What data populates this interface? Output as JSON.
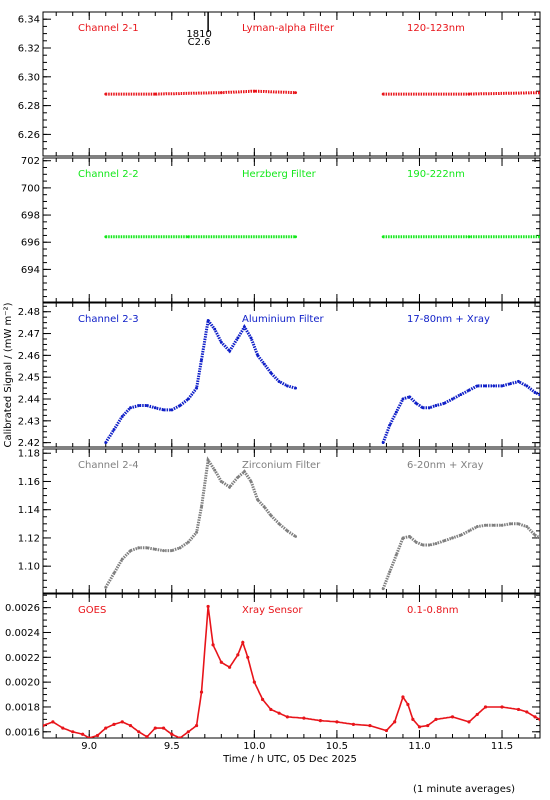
{
  "chart_data": [
    {
      "type": "scatter",
      "labels": [
        "Channel 2-1",
        "Lyman-alpha Filter",
        "120-123nm"
      ],
      "color": "#e8141a",
      "ylim": [
        6.245,
        6.345
      ],
      "yticks": [
        6.26,
        6.28,
        6.3,
        6.32,
        6.34
      ],
      "ytick_decimals": 2,
      "segments": [
        {
          "x": [
            9.1,
            9.4,
            9.8,
            10.0,
            10.25
          ],
          "y": [
            6.288,
            6.288,
            6.289,
            6.29,
            6.289
          ]
        },
        {
          "x": [
            10.78,
            11.3,
            11.73
          ],
          "y": [
            6.288,
            6.288,
            6.289
          ]
        }
      ]
    },
    {
      "type": "scatter",
      "labels": [
        "Channel 2-2",
        "Herzberg Filter",
        "190-222nm"
      ],
      "color": "#13e81a",
      "ylim": [
        691.6,
        702.2
      ],
      "yticks": [
        694,
        696,
        698,
        700,
        702
      ],
      "ytick_decimals": 0,
      "segments": [
        {
          "x": [
            9.1,
            9.6,
            10.25
          ],
          "y": [
            696.4,
            696.4,
            696.4
          ]
        },
        {
          "x": [
            10.78,
            11.3,
            11.73
          ],
          "y": [
            696.4,
            696.4,
            696.4
          ]
        }
      ]
    },
    {
      "type": "scatter",
      "labels": [
        "Channel 2-3",
        "Aluminium Filter",
        "17-80nm + Xray"
      ],
      "color": "#1020c8",
      "ylim": [
        2.418,
        2.484
      ],
      "yticks": [
        2.42,
        2.43,
        2.44,
        2.45,
        2.46,
        2.47,
        2.48
      ],
      "ytick_decimals": 2,
      "segments": [
        {
          "x": [
            9.1,
            9.15,
            9.2,
            9.25,
            9.3,
            9.35,
            9.4,
            9.45,
            9.5,
            9.55,
            9.6,
            9.65,
            9.68,
            9.72,
            9.76,
            9.8,
            9.85,
            9.9,
            9.94,
            9.98,
            10.02,
            10.06,
            10.1,
            10.15,
            10.2,
            10.25
          ],
          "y": [
            2.42,
            2.426,
            2.432,
            2.436,
            2.437,
            2.437,
            2.436,
            2.435,
            2.435,
            2.437,
            2.44,
            2.445,
            2.458,
            2.476,
            2.472,
            2.466,
            2.462,
            2.468,
            2.473,
            2.468,
            2.46,
            2.456,
            2.452,
            2.448,
            2.446,
            2.445
          ]
        },
        {
          "x": [
            10.78,
            10.82,
            10.86,
            10.9,
            10.94,
            10.98,
            11.02,
            11.06,
            11.1,
            11.15,
            11.2,
            11.25,
            11.3,
            11.35,
            11.4,
            11.45,
            11.5,
            11.55,
            11.6,
            11.65,
            11.7,
            11.73
          ],
          "y": [
            2.42,
            2.428,
            2.434,
            2.44,
            2.441,
            2.438,
            2.436,
            2.436,
            2.437,
            2.438,
            2.44,
            2.442,
            2.444,
            2.446,
            2.446,
            2.446,
            2.446,
            2.447,
            2.448,
            2.446,
            2.443,
            2.442
          ]
        }
      ]
    },
    {
      "type": "scatter",
      "labels": [
        "Channel 2-4",
        "Zirconium Filter",
        "6-20nm + Xray"
      ],
      "color": "#808080",
      "ylim": [
        1.081,
        1.183
      ],
      "yticks": [
        1.1,
        1.12,
        1.14,
        1.16,
        1.18
      ],
      "ytick_decimals": 2,
      "segments": [
        {
          "x": [
            9.1,
            9.15,
            9.2,
            9.25,
            9.3,
            9.35,
            9.4,
            9.45,
            9.5,
            9.55,
            9.6,
            9.65,
            9.68,
            9.72,
            9.76,
            9.8,
            9.85,
            9.9,
            9.94,
            9.98,
            10.02,
            10.06,
            10.1,
            10.15,
            10.2,
            10.25
          ],
          "y": [
            1.085,
            1.095,
            1.105,
            1.111,
            1.113,
            1.113,
            1.112,
            1.111,
            1.111,
            1.113,
            1.117,
            1.124,
            1.142,
            1.175,
            1.168,
            1.16,
            1.156,
            1.163,
            1.167,
            1.16,
            1.147,
            1.142,
            1.136,
            1.13,
            1.125,
            1.121
          ]
        },
        {
          "x": [
            10.78,
            10.82,
            10.86,
            10.9,
            10.94,
            10.98,
            11.02,
            11.06,
            11.1,
            11.15,
            11.2,
            11.25,
            11.3,
            11.35,
            11.4,
            11.45,
            11.5,
            11.55,
            11.6,
            11.65,
            11.7,
            11.73
          ],
          "y": [
            1.084,
            1.096,
            1.108,
            1.12,
            1.121,
            1.117,
            1.115,
            1.115,
            1.116,
            1.118,
            1.12,
            1.122,
            1.125,
            1.128,
            1.129,
            1.129,
            1.129,
            1.13,
            1.13,
            1.128,
            1.122,
            1.12
          ]
        }
      ]
    },
    {
      "type": "line",
      "labels": [
        "GOES",
        "Xray Sensor",
        "0.1-0.8nm"
      ],
      "color": "#e8141a",
      "ylim": [
        0.00155,
        0.00271
      ],
      "yticks": [
        0.0016,
        0.0018,
        0.002,
        0.0022,
        0.0024,
        0.0026
      ],
      "ytick_decimals": 4,
      "segments": [
        {
          "x": [
            8.72,
            8.78,
            8.84,
            8.9,
            8.96,
            9.0,
            9.05,
            9.1,
            9.15,
            9.2,
            9.25,
            9.3,
            9.35,
            9.4,
            9.45,
            9.5,
            9.55,
            9.6,
            9.65,
            9.68,
            9.72,
            9.75,
            9.8,
            9.85,
            9.9,
            9.93,
            9.96,
            10.0,
            10.05,
            10.1,
            10.15,
            10.2,
            10.3,
            10.4,
            10.5,
            10.6,
            10.7,
            10.8,
            10.85,
            10.9,
            10.93,
            10.96,
            11.0,
            11.05,
            11.1,
            11.2,
            11.3,
            11.35,
            11.4,
            11.5,
            11.6,
            11.65,
            11.7,
            11.73
          ],
          "y": [
            0.00165,
            0.00168,
            0.00163,
            0.0016,
            0.00158,
            0.00155,
            0.00157,
            0.00163,
            0.00166,
            0.00168,
            0.00165,
            0.0016,
            0.00156,
            0.00163,
            0.00163,
            0.00158,
            0.00155,
            0.0016,
            0.00165,
            0.00192,
            0.00261,
            0.0023,
            0.00216,
            0.00212,
            0.00222,
            0.00232,
            0.0022,
            0.002,
            0.00186,
            0.00178,
            0.00175,
            0.00172,
            0.00171,
            0.00169,
            0.00168,
            0.00166,
            0.00165,
            0.00161,
            0.00168,
            0.00188,
            0.00182,
            0.0017,
            0.00164,
            0.00165,
            0.0017,
            0.00172,
            0.00168,
            0.00174,
            0.0018,
            0.0018,
            0.00178,
            0.00176,
            0.00172,
            0.0017
          ]
        }
      ]
    }
  ],
  "x_axis": {
    "xlim": [
      8.72,
      11.73
    ],
    "ticks": [
      9.0,
      9.5,
      10.0,
      10.5,
      11.0,
      11.5
    ],
    "label": "Time / h UTC, 05 Dec 2025"
  },
  "y_axis_label": "Calibrated Signal / (mW m⁻²)",
  "marker_annotation": {
    "x": 9.72,
    "line1": "1810",
    "line2": "C2.6"
  },
  "footer_note": "(1 minute averages)"
}
